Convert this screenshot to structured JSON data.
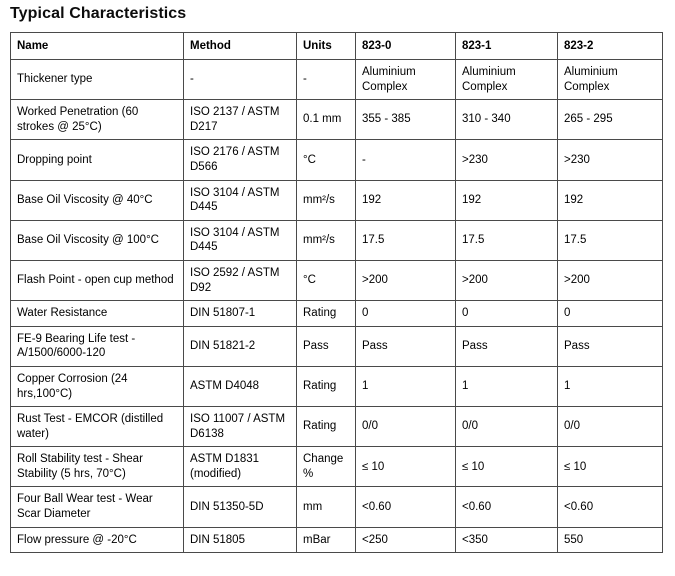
{
  "page": {
    "title": "Typical Characteristics"
  },
  "colors": {
    "border_inner": "#4a4a4a",
    "border_outer": "#3a3a3a",
    "text": "#000000",
    "background": "#ffffff"
  },
  "table": {
    "columns": [
      "Name",
      "Method",
      "Units",
      "823-0",
      "823-1",
      "823-2"
    ],
    "rows": [
      [
        "Thickener type",
        "-",
        "-",
        "Aluminium Complex",
        "Aluminium Complex",
        "Aluminium Complex"
      ],
      [
        "Worked Penetration (60 strokes @ 25°C)",
        "ISO 2137 / ASTM D217",
        "0.1 mm",
        "355 - 385",
        "310 - 340",
        "265 - 295"
      ],
      [
        "Dropping point",
        "ISO 2176 / ASTM D566",
        "°C",
        "-",
        ">230",
        ">230"
      ],
      [
        "Base Oil Viscosity @ 40°C",
        "ISO 3104 / ASTM D445",
        "mm²/s",
        "192",
        "192",
        "192"
      ],
      [
        "Base Oil Viscosity @ 100°C",
        "ISO 3104 / ASTM D445",
        "mm²/s",
        "17.5",
        "17.5",
        "17.5"
      ],
      [
        "Flash Point - open cup method",
        "ISO 2592 / ASTM D92",
        "°C",
        ">200",
        ">200",
        ">200"
      ],
      [
        "Water Resistance",
        "DIN 51807-1",
        "Rating",
        "0",
        "0",
        "0"
      ],
      [
        "FE-9 Bearing Life test - A/1500/6000-120",
        "DIN 51821-2",
        "Pass",
        "Pass",
        "Pass",
        "Pass"
      ],
      [
        "Copper Corrosion (24 hrs,100°C)",
        "ASTM D4048",
        "Rating",
        "1",
        "1",
        "1"
      ],
      [
        "Rust Test - EMCOR (distilled water)",
        "ISO 11007 / ASTM D6138",
        "Rating",
        "0/0",
        "0/0",
        "0/0"
      ],
      [
        "Roll Stability test - Shear Stability (5 hrs, 70°C)",
        "ASTM D1831 (modified)",
        "Change %",
        "≤ 10",
        "≤ 10",
        "≤ 10"
      ],
      [
        "Four Ball Wear test - Wear Scar Diameter",
        "DIN 51350-5D",
        "mm",
        "<0.60",
        "<0.60",
        "<0.60"
      ],
      [
        "Flow pressure @ -20°C",
        "DIN 51805",
        "mBar",
        "<250",
        "<350",
        "550"
      ]
    ]
  }
}
